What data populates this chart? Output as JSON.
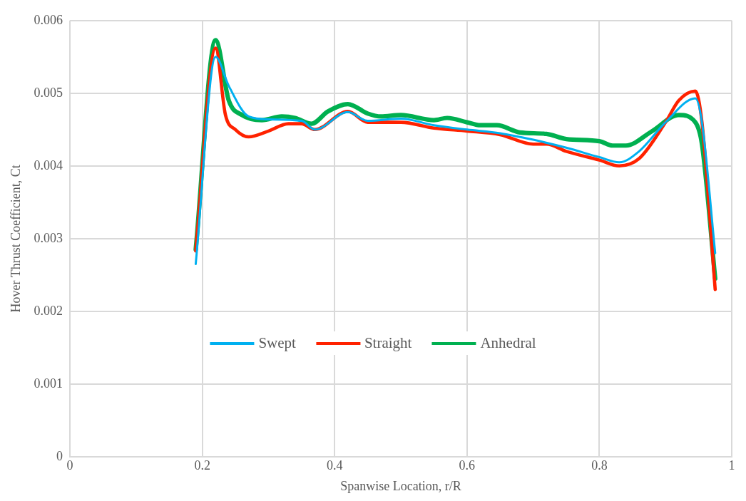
{
  "chart_data": {
    "type": "line",
    "xlabel": "Spanwise Location, r/R",
    "ylabel": "Hover Thrust Coefficient, Ct",
    "xlim": [
      0,
      1
    ],
    "xticks": [
      0,
      0.2,
      0.4,
      0.6,
      0.8,
      1
    ],
    "ylim": [
      0,
      0.006
    ],
    "yticks": [
      0,
      0.001,
      0.002,
      0.003,
      0.004,
      0.005,
      0.006
    ],
    "grid": true,
    "legend": "bottom",
    "marker": "none",
    "line_style": "solid",
    "series": [
      {
        "name": "Swept",
        "color": "#00b0f0",
        "x": [
          0.19,
          0.22,
          0.24,
          0.27,
          0.3,
          0.35,
          0.37,
          0.42,
          0.45,
          0.5,
          0.55,
          0.6,
          0.65,
          0.7,
          0.75,
          0.8,
          0.83,
          0.86,
          0.9,
          0.945,
          0.955,
          0.975
        ],
        "values": [
          0.00265,
          0.0055,
          0.0051,
          0.00468,
          0.00464,
          0.00462,
          0.0045,
          0.00474,
          0.00462,
          0.00465,
          0.00456,
          0.0045,
          0.00445,
          0.00436,
          0.00425,
          0.00412,
          0.00405,
          0.0042,
          0.0046,
          0.00493,
          0.0046,
          0.0028
        ]
      },
      {
        "name": "Straight",
        "color": "#ff2200",
        "x": [
          0.19,
          0.22,
          0.235,
          0.25,
          0.27,
          0.3,
          0.33,
          0.35,
          0.37,
          0.42,
          0.45,
          0.5,
          0.55,
          0.6,
          0.65,
          0.7,
          0.72,
          0.75,
          0.8,
          0.83,
          0.86,
          0.9,
          0.92,
          0.945,
          0.955,
          0.975
        ],
        "values": [
          0.00283,
          0.00562,
          0.0047,
          0.0045,
          0.0044,
          0.00448,
          0.00458,
          0.00458,
          0.0045,
          0.00475,
          0.0046,
          0.0046,
          0.00452,
          0.00448,
          0.00443,
          0.0043,
          0.0043,
          0.0042,
          0.00408,
          0.004,
          0.0041,
          0.0046,
          0.0049,
          0.00503,
          0.0046,
          0.0023
        ]
      },
      {
        "name": "Anhedral",
        "color": "#00b050",
        "x": [
          0.19,
          0.22,
          0.24,
          0.26,
          0.29,
          0.32,
          0.34,
          0.365,
          0.39,
          0.42,
          0.45,
          0.47,
          0.5,
          0.55,
          0.57,
          0.6,
          0.62,
          0.645,
          0.68,
          0.72,
          0.75,
          0.8,
          0.82,
          0.84,
          0.88,
          0.92,
          0.945,
          0.955,
          0.975
        ],
        "values": [
          0.00285,
          0.00573,
          0.0049,
          0.0047,
          0.00463,
          0.00468,
          0.00466,
          0.00458,
          0.00475,
          0.00485,
          0.00472,
          0.00468,
          0.0047,
          0.00463,
          0.00466,
          0.0046,
          0.00456,
          0.00456,
          0.00446,
          0.00444,
          0.00437,
          0.00434,
          0.00428,
          0.00428,
          0.00448,
          0.0047,
          0.0046,
          0.0043,
          0.00245
        ]
      }
    ]
  }
}
